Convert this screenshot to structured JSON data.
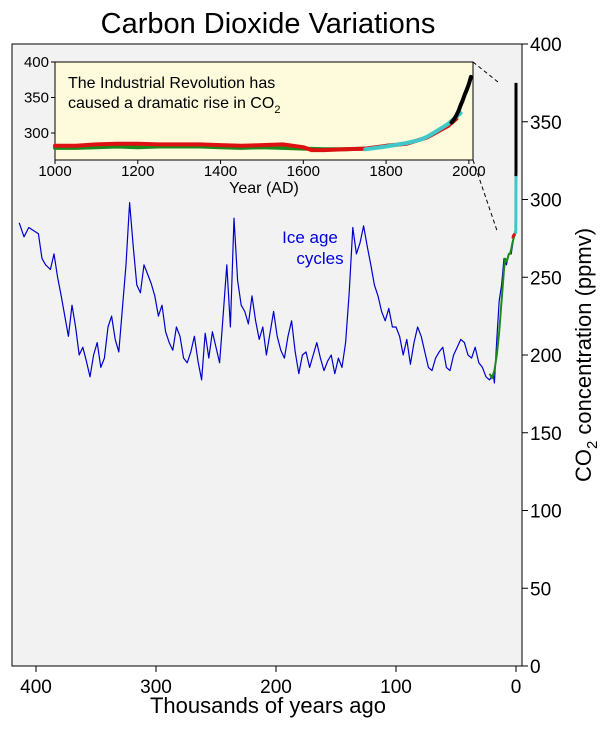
{
  "chart_data": {
    "type": "line",
    "title": "Carbon Dioxide Variations",
    "xlabel": "Thousands of years ago",
    "ylabel_pre": "CO",
    "ylabel_sub": "2",
    "ylabel_post": " concentration (ppmv)",
    "xlim": [
      420,
      -5
    ],
    "ylim": [
      0,
      400
    ],
    "x_ticks": [
      400,
      300,
      200,
      100,
      0
    ],
    "y_ticks": [
      0,
      50,
      100,
      150,
      200,
      250,
      300,
      350,
      400
    ],
    "y_axis_side": "right",
    "background": "#f2f2f2",
    "annotation": {
      "text_line1": "Ice age",
      "text_line2": "cycles",
      "color": "#0000dd"
    },
    "series": [
      {
        "color": "#0000cc",
        "x": [
          414,
          410,
          406,
          402,
          398,
          395,
          392,
          388,
          385,
          382,
          379,
          376,
          373,
          370,
          367,
          364,
          361,
          358,
          355,
          352,
          349,
          346,
          343,
          340,
          337,
          334,
          331,
          328,
          325,
          322,
          319,
          316,
          313,
          310,
          307,
          304,
          301,
          298,
          295,
          292,
          289,
          286,
          283,
          280,
          277,
          274,
          271,
          268,
          265,
          262,
          259,
          256,
          253,
          250,
          247,
          244,
          241,
          238,
          235,
          232,
          229,
          226,
          223,
          220,
          217,
          214,
          211,
          208,
          205,
          202,
          199,
          196,
          193,
          190,
          187,
          184,
          181,
          178,
          175,
          172,
          169,
          166,
          163,
          160,
          157,
          154,
          151,
          148,
          145,
          142,
          139,
          136,
          133,
          130,
          127,
          124,
          121,
          118,
          115,
          112,
          109,
          106,
          103,
          100,
          97,
          94,
          91,
          88,
          85,
          82,
          79,
          76,
          73,
          70,
          67,
          64,
          61,
          58,
          55,
          52,
          49,
          46,
          43,
          40,
          37,
          34,
          31,
          28,
          25,
          22,
          19,
          18,
          16,
          14,
          12,
          10,
          8,
          6,
          4,
          2,
          0.5
        ],
        "y": [
          285,
          276,
          282,
          280,
          278,
          262,
          258,
          255,
          265,
          250,
          238,
          225,
          212,
          232,
          218,
          200,
          205,
          196,
          186,
          200,
          208,
          192,
          198,
          218,
          225,
          210,
          202,
          230,
          258,
          298,
          270,
          245,
          240,
          258,
          252,
          246,
          238,
          225,
          232,
          215,
          208,
          203,
          218,
          212,
          198,
          195,
          202,
          212,
          196,
          184,
          214,
          198,
          215,
          205,
          195,
          226,
          258,
          218,
          288,
          248,
          232,
          228,
          220,
          238,
          222,
          210,
          218,
          200,
          214,
          228,
          212,
          203,
          198,
          212,
          222,
          202,
          188,
          200,
          202,
          192,
          200,
          208,
          198,
          190,
          196,
          200,
          188,
          198,
          192,
          208,
          240,
          282,
          265,
          272,
          283,
          270,
          258,
          245,
          238,
          228,
          222,
          230,
          218,
          218,
          212,
          200,
          210,
          194,
          208,
          218,
          212,
          202,
          192,
          190,
          198,
          202,
          205,
          192,
          190,
          200,
          205,
          210,
          208,
          200,
          198,
          205,
          195,
          192,
          186,
          184,
          188,
          182,
          210,
          235,
          245,
          262,
          258,
          265,
          265,
          275,
          280
        ]
      },
      {
        "color": "#1a8a1a",
        "x": [
          22,
          20,
          18,
          16,
          14,
          12,
          11,
          10,
          9,
          8,
          7,
          6,
          5,
          4,
          3,
          2,
          1
        ],
        "y": [
          188,
          185,
          190,
          200,
          215,
          235,
          245,
          255,
          262,
          260,
          262,
          265,
          265,
          268,
          272,
          275,
          278
        ]
      },
      {
        "color": "#dd1111",
        "x": [
          3,
          2.5,
          2,
          1.5,
          1.0,
          0.8,
          0.5
        ],
        "y": [
          275,
          277,
          276,
          278,
          277,
          279,
          280
        ]
      },
      {
        "color": "#40c8c8",
        "x": [
          0.25,
          0.2,
          0.15,
          0.1,
          0.07,
          0.05,
          0.04
        ],
        "y": [
          278,
          281,
          283,
          288,
          295,
          305,
          315
        ]
      },
      {
        "color": "#000000",
        "x": [
          0.05,
          0.04,
          0.03,
          0.02,
          0.01,
          0.0
        ],
        "y": [
          315,
          318,
          330,
          345,
          360,
          375
        ]
      }
    ],
    "inset": {
      "title_line1": "The Industrial Revolution has",
      "title_line2_pre": "caused a dramatic rise in CO",
      "title_line2_sub": "2",
      "xlabel": "Year (AD)",
      "xlim": [
        1000,
        2010
      ],
      "ylim": [
        262,
        400
      ],
      "x_ticks": [
        1000,
        1200,
        1400,
        1600,
        1800,
        2000
      ],
      "y_ticks": [
        300,
        350,
        400
      ],
      "background": "#fdfbdc",
      "series": [
        {
          "color": "#1a8a1a",
          "width": 4,
          "x": [
            1000,
            1050,
            1100,
            1150,
            1200,
            1250,
            1300,
            1350,
            1400,
            1450,
            1500,
            1550,
            1600,
            1650,
            1700,
            1750
          ],
          "y": [
            279,
            279,
            280,
            281,
            280,
            281,
            281,
            281,
            280,
            279,
            280,
            279,
            278,
            277,
            277,
            278
          ]
        },
        {
          "color": "#dd1111",
          "width": 4,
          "x": [
            1000,
            1050,
            1100,
            1150,
            1200,
            1250,
            1300,
            1350,
            1400,
            1450,
            1500,
            1550,
            1600,
            1620,
            1650,
            1700,
            1750,
            1800,
            1850,
            1900,
            1950,
            1970
          ],
          "y": [
            282,
            282,
            284,
            285,
            285,
            284,
            284,
            284,
            283,
            282,
            283,
            284,
            280,
            276,
            276,
            277,
            278,
            282,
            285,
            294,
            310,
            320
          ]
        },
        {
          "color": "#40c8c8",
          "width": 4,
          "x": [
            1750,
            1800,
            1850,
            1880,
            1900,
            1920,
            1940,
            1950,
            1960,
            1970,
            1980
          ],
          "y": [
            277,
            281,
            286,
            290,
            295,
            302,
            309,
            313,
            318,
            323,
            328
          ]
        },
        {
          "color": "#000000",
          "width": 4,
          "x": [
            1958,
            1965,
            1970,
            1975,
            1980,
            1985,
            1990,
            1995,
            2000,
            2005
          ],
          "y": [
            315,
            320,
            325,
            331,
            339,
            346,
            354,
            361,
            369,
            379
          ]
        }
      ]
    }
  }
}
